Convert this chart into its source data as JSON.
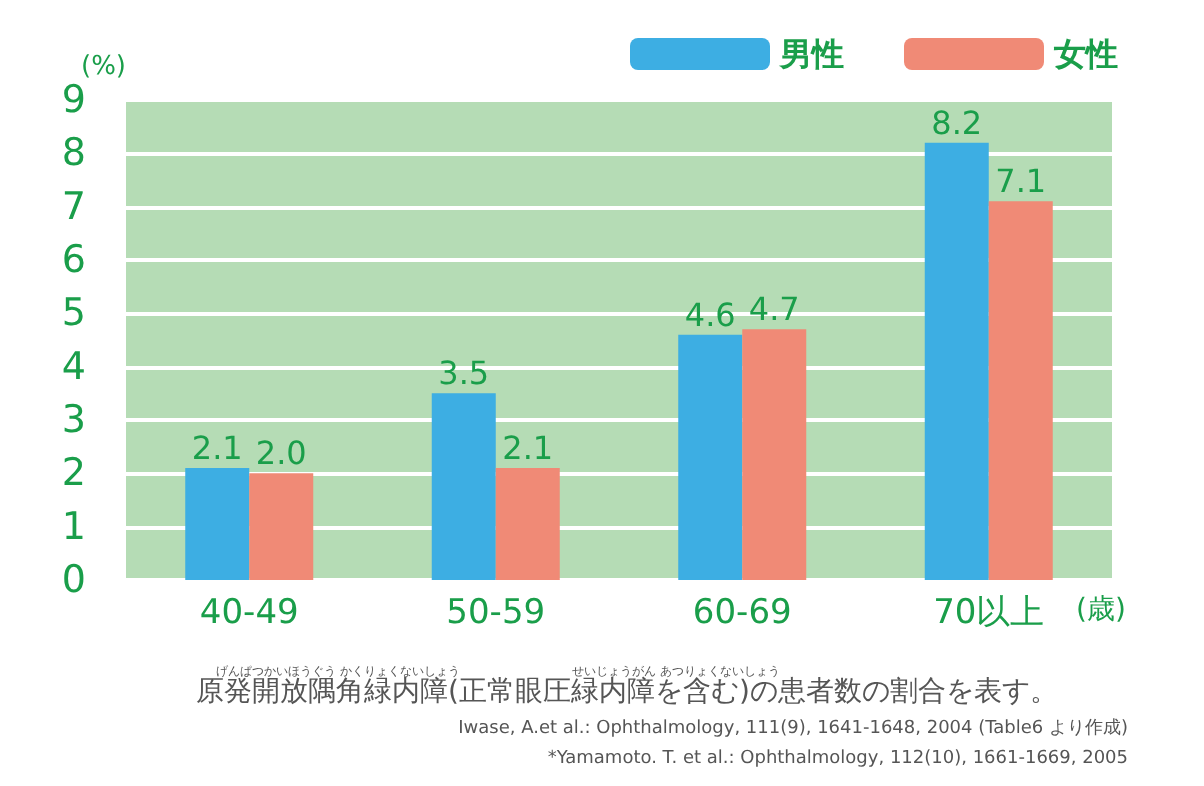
{
  "chart_data": {
    "type": "bar",
    "ylabel": "(%)",
    "xlabel": "(歳)",
    "categories": [
      "40-49",
      "50-59",
      "60-69",
      "70以上"
    ],
    "series": [
      {
        "name": "男性",
        "color": "#3daee3",
        "values": [
          2.1,
          3.5,
          4.6,
          8.2
        ],
        "value_labels": [
          "2.1",
          "3.5",
          "4.6",
          "8.2"
        ]
      },
      {
        "name": "女性",
        "color": "#f08a76",
        "values": [
          2.0,
          2.1,
          4.7,
          7.1
        ],
        "value_labels": [
          "2.0",
          "2.1",
          "4.7",
          "7.1"
        ]
      }
    ],
    "ylim": [
      0,
      9
    ],
    "yticks": [
      0,
      1,
      2,
      3,
      4,
      5,
      6,
      7,
      8,
      9
    ],
    "grid": "y",
    "legend": "top right",
    "annotations": [
      "げんぱつかいほうぐう かくりょくないしょう",
      "せいじょうがん あつりょくないしょう",
      "原発開放隅角緑内障(正常眼圧緑内障を含む)の患者数の割合を表す。",
      "Iwase, A.et al.: Ophthalmology, 111(9), 1641-1648, 2004 (Table6 より作成)",
      "*Yamamoto. T. et al.: Ophthalmology, 112(10), 1661-1669, 2005"
    ]
  }
}
